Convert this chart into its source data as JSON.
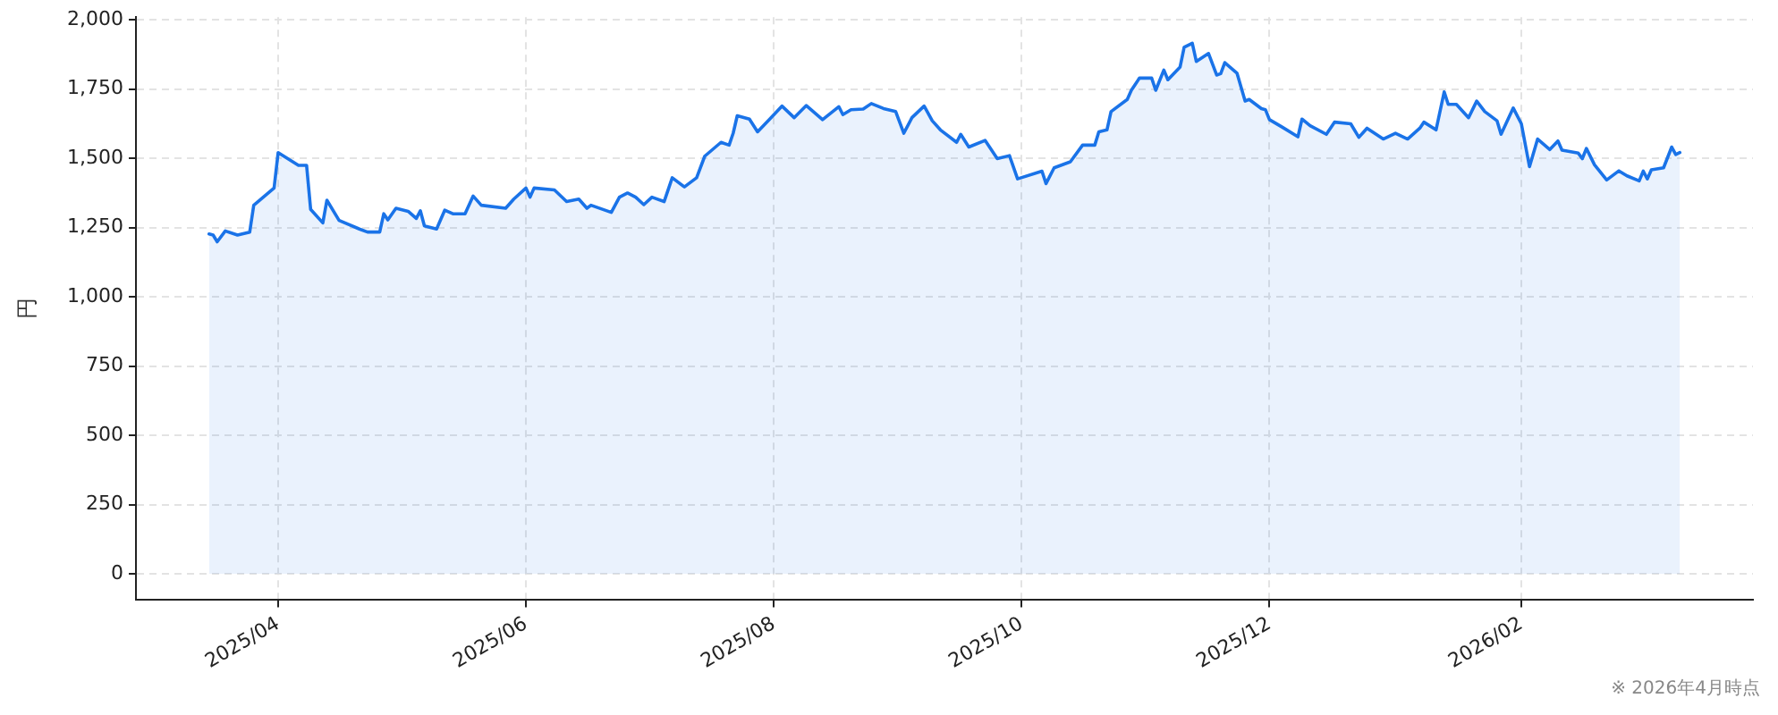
{
  "chart_data": {
    "type": "area",
    "ylabel": "円",
    "annotations": [
      "※ 2026年4月時点"
    ],
    "x": [
      "2025-03-15",
      "2025-03-16",
      "2025-03-17",
      "2025-03-19",
      "2025-03-22",
      "2025-03-25",
      "2025-03-26",
      "2025-03-31",
      "2025-04-01",
      "2025-04-06",
      "2025-04-08",
      "2025-04-09",
      "2025-04-12",
      "2025-04-13",
      "2025-04-16",
      "2025-04-21",
      "2025-04-23",
      "2025-04-26",
      "2025-04-27",
      "2025-04-28",
      "2025-04-30",
      "2025-05-03",
      "2025-05-05",
      "2025-05-06",
      "2025-05-07",
      "2025-05-10",
      "2025-05-12",
      "2025-05-14",
      "2025-05-17",
      "2025-05-19",
      "2025-05-21",
      "2025-05-27",
      "2025-05-29",
      "2025-06-01",
      "2025-06-02",
      "2025-06-03",
      "2025-06-08",
      "2025-06-11",
      "2025-06-14",
      "2025-06-16",
      "2025-06-17",
      "2025-06-22",
      "2025-06-24",
      "2025-06-26",
      "2025-06-28",
      "2025-06-30",
      "2025-07-02",
      "2025-07-05",
      "2025-07-07",
      "2025-07-10",
      "2025-07-13",
      "2025-07-15",
      "2025-07-19",
      "2025-07-21",
      "2025-07-22",
      "2025-07-23",
      "2025-07-26",
      "2025-07-28",
      "2025-07-31",
      "2025-08-03",
      "2025-08-06",
      "2025-08-09",
      "2025-08-13",
      "2025-08-17",
      "2025-08-18",
      "2025-08-20",
      "2025-08-23",
      "2025-08-25",
      "2025-08-28",
      "2025-08-31",
      "2025-09-02",
      "2025-09-04",
      "2025-09-07",
      "2025-09-09",
      "2025-09-11",
      "2025-09-15",
      "2025-09-16",
      "2025-09-18",
      "2025-09-22",
      "2025-09-25",
      "2025-09-28",
      "2025-09-30",
      "2025-10-06",
      "2025-10-07",
      "2025-10-09",
      "2025-10-13",
      "2025-10-16",
      "2025-10-19",
      "2025-10-20",
      "2025-10-22",
      "2025-10-23",
      "2025-10-27",
      "2025-10-28",
      "2025-10-30",
      "2025-11-02",
      "2025-11-03",
      "2025-11-05",
      "2025-11-06",
      "2025-11-09",
      "2025-11-10",
      "2025-11-12",
      "2025-11-13",
      "2025-11-16",
      "2025-11-18",
      "2025-11-19",
      "2025-11-20",
      "2025-11-23",
      "2025-11-25",
      "2025-11-26",
      "2025-11-29",
      "2025-11-30",
      "2025-12-01",
      "2025-12-04",
      "2025-12-08",
      "2025-12-09",
      "2025-12-11",
      "2025-12-15",
      "2025-12-17",
      "2025-12-21",
      "2025-12-23",
      "2025-12-25",
      "2025-12-29",
      "2026-01-01",
      "2026-01-04",
      "2026-01-07",
      "2026-01-08",
      "2026-01-11",
      "2026-01-13",
      "2026-01-14",
      "2026-01-16",
      "2026-01-19",
      "2026-01-21",
      "2026-01-23",
      "2026-01-26",
      "2026-01-27",
      "2026-01-30",
      "2026-02-01",
      "2026-02-03",
      "2026-02-05",
      "2026-02-08",
      "2026-02-10",
      "2026-02-11",
      "2026-02-15",
      "2026-02-16",
      "2026-02-17",
      "2026-02-19",
      "2026-02-22",
      "2026-02-25",
      "2026-02-27",
      "2026-03-02",
      "2026-03-03",
      "2026-03-04",
      "2026-03-05",
      "2026-03-08",
      "2026-03-10",
      "2026-03-11",
      "2026-03-12"
    ],
    "series": [
      {
        "color": "#1a73e8",
        "values": [
          1227,
          1223,
          1199,
          1238,
          1223,
          1234,
          1331,
          1393,
          1521,
          1475,
          1475,
          1316,
          1267,
          1349,
          1276,
          1245,
          1234,
          1234,
          1300,
          1278,
          1320,
          1309,
          1283,
          1311,
          1256,
          1245,
          1313,
          1300,
          1300,
          1364,
          1331,
          1320,
          1353,
          1393,
          1360,
          1393,
          1386,
          1344,
          1353,
          1320,
          1331,
          1305,
          1360,
          1375,
          1360,
          1333,
          1360,
          1344,
          1430,
          1397,
          1430,
          1508,
          1558,
          1548,
          1591,
          1654,
          1642,
          1596,
          1642,
          1689,
          1647,
          1691,
          1640,
          1687,
          1658,
          1676,
          1678,
          1698,
          1680,
          1669,
          1591,
          1647,
          1689,
          1636,
          1603,
          1558,
          1587,
          1541,
          1565,
          1499,
          1510,
          1426,
          1454,
          1409,
          1466,
          1488,
          1548,
          1548,
          1596,
          1603,
          1669,
          1713,
          1746,
          1790,
          1790,
          1746,
          1819,
          1784,
          1830,
          1901,
          1916,
          1850,
          1879,
          1801,
          1806,
          1846,
          1808,
          1707,
          1713,
          1680,
          1676,
          1640,
          1614,
          1578,
          1642,
          1618,
          1587,
          1631,
          1625,
          1576,
          1609,
          1570,
          1591,
          1570,
          1609,
          1631,
          1603,
          1740,
          1695,
          1695,
          1647,
          1707,
          1669,
          1636,
          1587,
          1682,
          1625,
          1470,
          1570,
          1532,
          1563,
          1530,
          1519,
          1499,
          1536,
          1477,
          1422,
          1455,
          1437,
          1419,
          1454,
          1426,
          1459,
          1466,
          1541,
          1514,
          1521
        ]
      }
    ],
    "xlim": [
      "2025-02-25",
      "2026-03-30"
    ],
    "xticks": [
      {
        "value": "2025-04",
        "label": "2025/04"
      },
      {
        "value": "2025-06",
        "label": "2025/06"
      },
      {
        "value": "2025-08",
        "label": "2025/08"
      },
      {
        "value": "2025-10",
        "label": "2025/10"
      },
      {
        "value": "2025-12",
        "label": "2025/12"
      },
      {
        "value": "2026-02",
        "label": "2026/02"
      }
    ],
    "ylim": [
      -95,
      2010
    ],
    "yticks": [
      0,
      250,
      500,
      750,
      {
        "value": 1000,
        "label": "1,000"
      },
      {
        "value": 1250,
        "label": "1,250"
      },
      {
        "value": 1500,
        "label": "1,500"
      },
      {
        "value": 1750,
        "label": "1,750"
      },
      {
        "value": 2000,
        "label": "2,000"
      }
    ],
    "grid": true,
    "marker": "none",
    "line_style": "solid",
    "legend": false
  }
}
